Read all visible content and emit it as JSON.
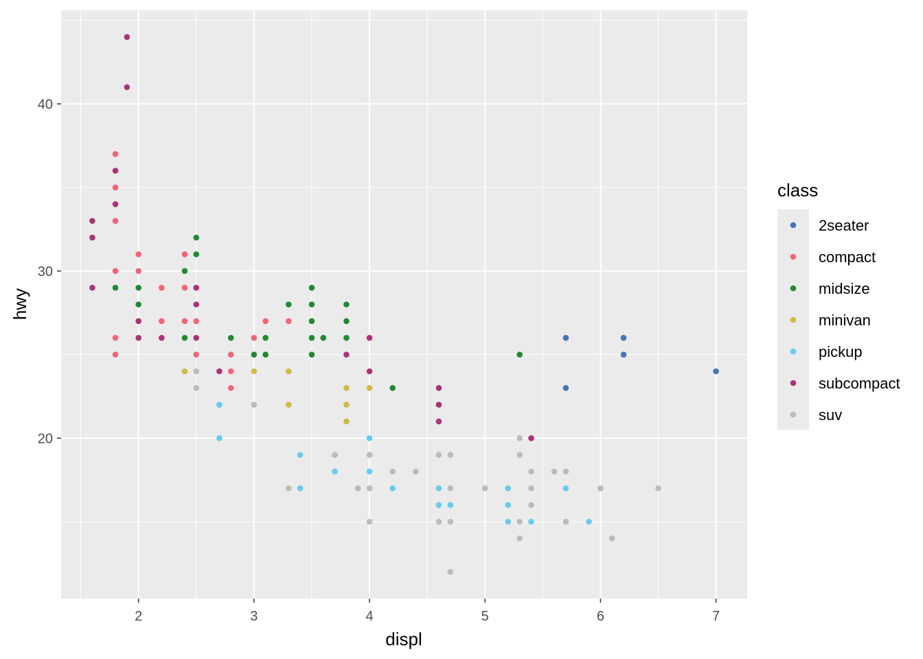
{
  "chart_data": {
    "type": "scatter",
    "title": "",
    "xlabel": "displ",
    "ylabel": "hwy",
    "xlim": [
      1.33,
      7.27
    ],
    "ylim": [
      10.4,
      45.6
    ],
    "x_ticks": [
      "2",
      "3",
      "4",
      "5",
      "6",
      "7"
    ],
    "y_ticks": [
      "20",
      "30",
      "40"
    ],
    "grid": true,
    "legend": {
      "title": "class",
      "placement": "right",
      "entries": [
        {
          "name": "2seater",
          "color": "#4575b4"
        },
        {
          "name": "compact",
          "color": "#ee6677"
        },
        {
          "name": "midsize",
          "color": "#228833"
        },
        {
          "name": "minivan",
          "color": "#ccbb44"
        },
        {
          "name": "pickup",
          "color": "#66ccee"
        },
        {
          "name": "subcompact",
          "color": "#aa3377"
        },
        {
          "name": "suv",
          "color": "#bbbbbb"
        }
      ]
    },
    "series": [
      {
        "name": "2seater",
        "points": [
          [
            5.7,
            26
          ],
          [
            5.7,
            23
          ],
          [
            6.2,
            26
          ],
          [
            6.2,
            25
          ],
          [
            7.0,
            24
          ]
        ]
      },
      {
        "name": "compact",
        "points": [
          [
            1.8,
            37
          ],
          [
            1.8,
            35
          ],
          [
            1.8,
            33
          ],
          [
            1.8,
            30
          ],
          [
            1.8,
            26
          ],
          [
            1.8,
            25
          ],
          [
            2.0,
            31
          ],
          [
            2.0,
            30
          ],
          [
            2.2,
            29
          ],
          [
            2.2,
            27
          ],
          [
            2.4,
            31
          ],
          [
            2.4,
            29
          ],
          [
            2.4,
            27
          ],
          [
            2.5,
            27
          ],
          [
            2.5,
            25
          ],
          [
            2.8,
            25
          ],
          [
            2.8,
            24
          ],
          [
            2.8,
            23
          ],
          [
            3.0,
            26
          ],
          [
            3.1,
            27
          ],
          [
            3.3,
            27
          ]
        ]
      },
      {
        "name": "midsize",
        "points": [
          [
            1.8,
            29
          ],
          [
            2.0,
            29
          ],
          [
            2.0,
            28
          ],
          [
            2.4,
            30
          ],
          [
            2.4,
            26
          ],
          [
            2.5,
            32
          ],
          [
            2.5,
            31
          ],
          [
            2.8,
            26
          ],
          [
            3.0,
            25
          ],
          [
            3.1,
            26
          ],
          [
            3.1,
            25
          ],
          [
            3.3,
            28
          ],
          [
            3.5,
            29
          ],
          [
            3.5,
            28
          ],
          [
            3.5,
            27
          ],
          [
            3.5,
            26
          ],
          [
            3.5,
            25
          ],
          [
            3.6,
            26
          ],
          [
            3.8,
            28
          ],
          [
            3.8,
            27
          ],
          [
            3.8,
            26
          ],
          [
            4.2,
            23
          ],
          [
            5.3,
            25
          ]
        ]
      },
      {
        "name": "minivan",
        "points": [
          [
            2.4,
            24
          ],
          [
            3.0,
            24
          ],
          [
            3.3,
            24
          ],
          [
            3.3,
            22
          ],
          [
            3.8,
            23
          ],
          [
            3.8,
            22
          ],
          [
            3.8,
            21
          ],
          [
            4.0,
            23
          ]
        ]
      },
      {
        "name": "pickup",
        "points": [
          [
            2.7,
            22
          ],
          [
            2.7,
            20
          ],
          [
            3.4,
            19
          ],
          [
            3.4,
            17
          ],
          [
            3.7,
            18
          ],
          [
            4.0,
            20
          ],
          [
            4.0,
            18
          ],
          [
            4.2,
            17
          ],
          [
            4.6,
            17
          ],
          [
            4.6,
            16
          ],
          [
            4.7,
            16
          ],
          [
            5.2,
            17
          ],
          [
            5.2,
            16
          ],
          [
            5.2,
            15
          ],
          [
            5.4,
            15
          ],
          [
            5.7,
            17
          ],
          [
            5.9,
            15
          ]
        ]
      },
      {
        "name": "subcompact",
        "points": [
          [
            1.6,
            33
          ],
          [
            1.6,
            32
          ],
          [
            1.6,
            29
          ],
          [
            1.8,
            36
          ],
          [
            1.8,
            34
          ],
          [
            1.9,
            44
          ],
          [
            1.9,
            41
          ],
          [
            2.0,
            27
          ],
          [
            2.0,
            26
          ],
          [
            2.2,
            26
          ],
          [
            2.5,
            29
          ],
          [
            2.5,
            28
          ],
          [
            2.5,
            26
          ],
          [
            2.7,
            24
          ],
          [
            3.8,
            25
          ],
          [
            4.0,
            26
          ],
          [
            4.0,
            24
          ],
          [
            4.6,
            23
          ],
          [
            4.6,
            22
          ],
          [
            4.6,
            21
          ],
          [
            5.4,
            20
          ]
        ]
      },
      {
        "name": "suv",
        "points": [
          [
            2.5,
            24
          ],
          [
            2.5,
            23
          ],
          [
            3.0,
            22
          ],
          [
            3.3,
            17
          ],
          [
            3.7,
            19
          ],
          [
            3.9,
            17
          ],
          [
            4.0,
            19
          ],
          [
            4.0,
            17
          ],
          [
            4.0,
            15
          ],
          [
            4.2,
            18
          ],
          [
            4.4,
            18
          ],
          [
            4.6,
            19
          ],
          [
            4.6,
            15
          ],
          [
            4.7,
            19
          ],
          [
            4.7,
            17
          ],
          [
            4.7,
            15
          ],
          [
            4.7,
            12
          ],
          [
            5.0,
            17
          ],
          [
            5.3,
            20
          ],
          [
            5.3,
            19
          ],
          [
            5.3,
            15
          ],
          [
            5.3,
            14
          ],
          [
            5.4,
            18
          ],
          [
            5.4,
            17
          ],
          [
            5.4,
            16
          ],
          [
            5.6,
            18
          ],
          [
            5.7,
            18
          ],
          [
            5.7,
            15
          ],
          [
            6.0,
            17
          ],
          [
            6.1,
            14
          ],
          [
            6.5,
            17
          ]
        ]
      }
    ]
  }
}
